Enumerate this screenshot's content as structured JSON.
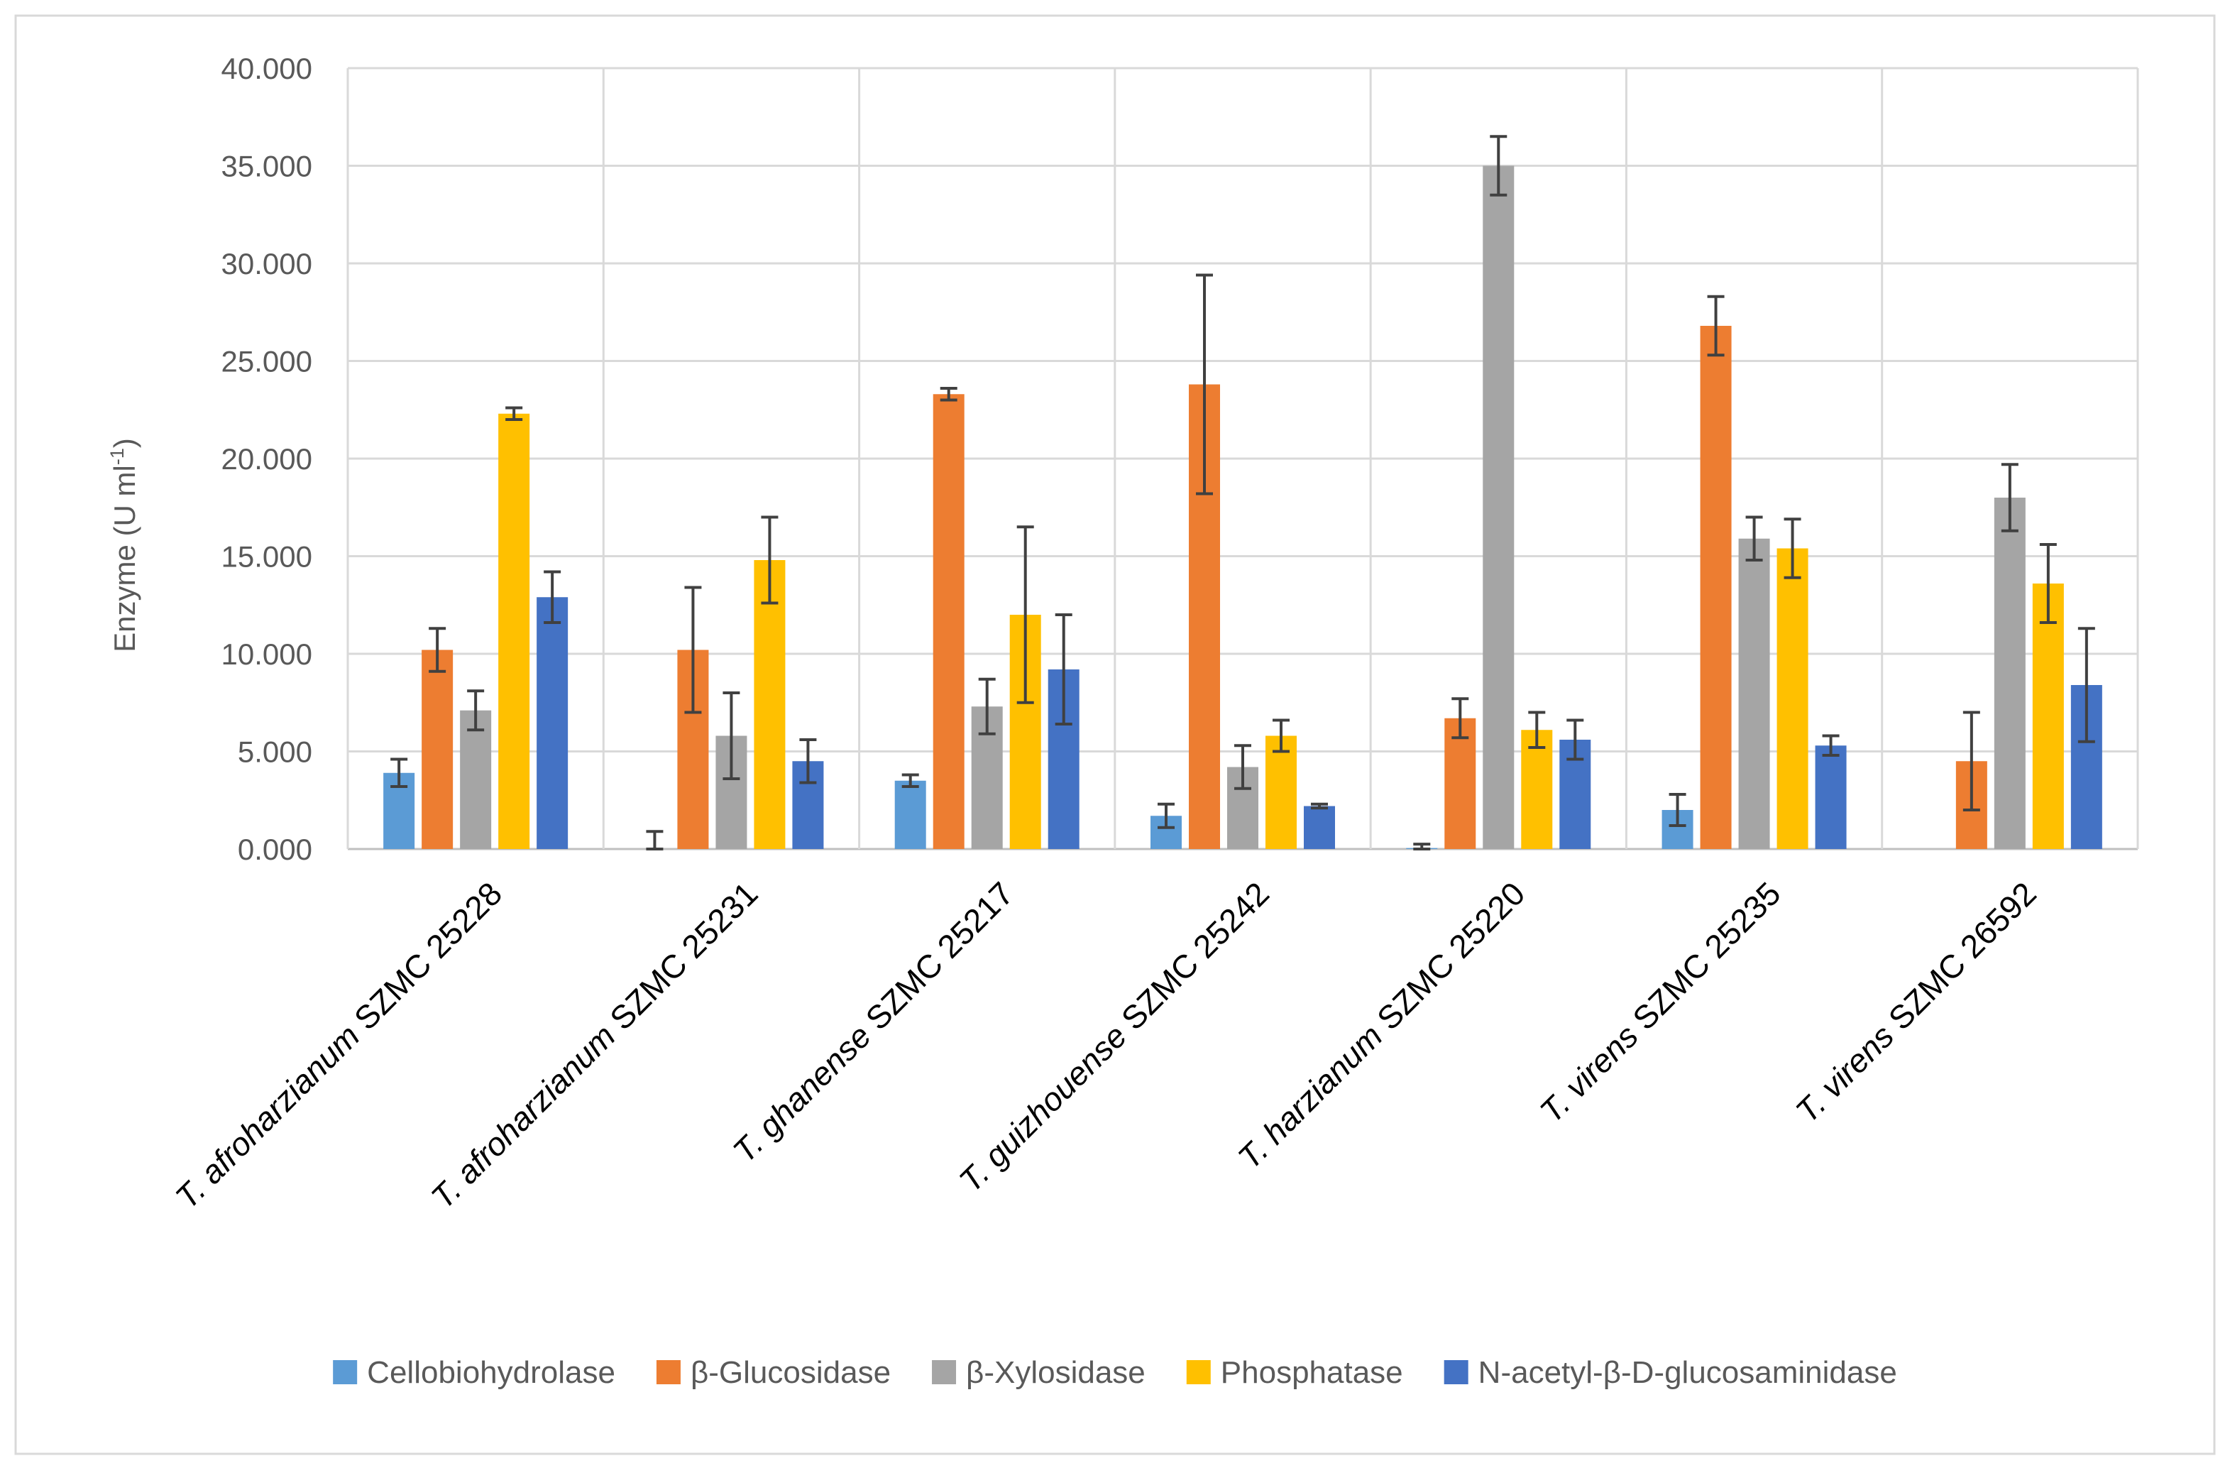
{
  "chart_data": {
    "type": "bar",
    "title": "",
    "xlabel": "",
    "ylabel": "Enzyme (U ml",
    "ylabel_sup": "-1",
    "ylabel_close": ")",
    "ylim": [
      0,
      40
    ],
    "ytick_values": [
      0,
      5,
      10,
      15,
      20,
      25,
      30,
      35,
      40
    ],
    "ytick_labels": [
      "0.000",
      "5.000",
      "10.000",
      "15.000",
      "20.000",
      "25.000",
      "30.000",
      "35.000",
      "40.000"
    ],
    "grid": true,
    "legend_position": "bottom",
    "categories": [
      {
        "species": "T. afroharzianum",
        "strain": "SZMC 25228"
      },
      {
        "species": "T. afroharzianum",
        "strain": "SZMC 25231"
      },
      {
        "species": "T. ghanense",
        "strain": "SZMC 25217"
      },
      {
        "species": "T. guizhouense",
        "strain": "SZMC 25242"
      },
      {
        "species": "T. harzianum",
        "strain": "SZMC 25220"
      },
      {
        "species": "T. virens",
        "strain": "SZMC 25235"
      },
      {
        "species": "T. virens",
        "strain": "SZMC 26592"
      }
    ],
    "series": [
      {
        "name": "Cellobiohydrolase",
        "color": "#5B9BD5",
        "values": [
          3.9,
          0.0,
          3.5,
          1.7,
          0.05,
          2.0,
          0.0
        ],
        "errors": [
          0.7,
          0.9,
          0.3,
          0.6,
          0.2,
          0.8,
          0
        ]
      },
      {
        "name": "β-Glucosidase",
        "color": "#ED7D31",
        "values": [
          10.2,
          10.2,
          23.3,
          23.8,
          6.7,
          26.8,
          4.5
        ],
        "errors": [
          1.1,
          3.2,
          0.3,
          5.6,
          1.0,
          1.5,
          2.5
        ]
      },
      {
        "name": "β-Xylosidase",
        "color": "#A5A5A5",
        "values": [
          7.1,
          5.8,
          7.3,
          4.2,
          35.0,
          15.9,
          18.0
        ],
        "errors": [
          1.0,
          2.2,
          1.4,
          1.1,
          1.5,
          1.1,
          1.7
        ]
      },
      {
        "name": "Phosphatase",
        "color": "#FFC000",
        "values": [
          22.3,
          14.8,
          12.0,
          5.8,
          6.1,
          15.4,
          13.6
        ],
        "errors": [
          0.3,
          2.2,
          4.5,
          0.8,
          0.9,
          1.5,
          2.0
        ]
      },
      {
        "name": "N-acetyl-β-D-glucosaminidase",
        "color": "#4472C4",
        "values": [
          12.9,
          4.5,
          9.2,
          2.2,
          5.6,
          5.3,
          8.4
        ],
        "errors": [
          1.3,
          1.1,
          2.8,
          0.1,
          1.0,
          0.5,
          2.9
        ]
      }
    ]
  }
}
